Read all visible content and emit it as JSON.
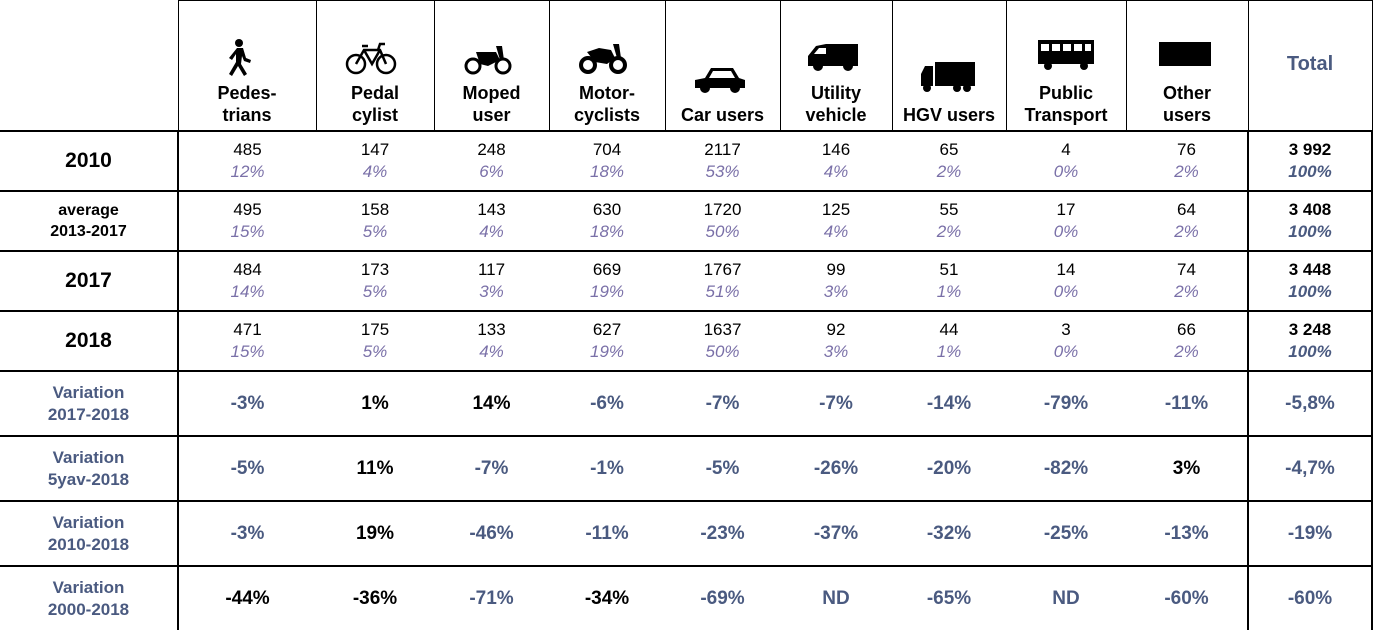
{
  "header": {
    "columns": [
      "Pedes-\ntrians",
      "Pedal\ncylist",
      "Moped\nuser",
      "Motor-\ncyclists",
      "Car users",
      "Utility\nvehicle",
      "HGV users",
      "Public\nTransport",
      "Other\nusers"
    ],
    "total": "Total"
  },
  "rows": [
    {
      "label": "2010",
      "counts": [
        485,
        147,
        248,
        704,
        2117,
        146,
        65,
        4,
        76
      ],
      "shares": [
        "12%",
        "4%",
        "6%",
        "18%",
        "53%",
        "4%",
        "2%",
        "0%",
        "2%"
      ],
      "total": "3 992",
      "total_share": "100%"
    },
    {
      "label": "average\n2013-2017",
      "counts": [
        495,
        158,
        143,
        630,
        1720,
        125,
        55,
        17,
        64
      ],
      "shares": [
        "15%",
        "5%",
        "4%",
        "18%",
        "50%",
        "4%",
        "2%",
        "0%",
        "2%"
      ],
      "total": "3 408",
      "total_share": "100%"
    },
    {
      "label": "2017",
      "counts": [
        484,
        173,
        117,
        669,
        1767,
        99,
        51,
        14,
        74
      ],
      "shares": [
        "14%",
        "5%",
        "3%",
        "19%",
        "51%",
        "3%",
        "1%",
        "0%",
        "2%"
      ],
      "total": "3 448",
      "total_share": "100%"
    },
    {
      "label": "2018",
      "counts": [
        471,
        175,
        133,
        627,
        1637,
        92,
        44,
        3,
        66
      ],
      "shares": [
        "15%",
        "5%",
        "4%",
        "19%",
        "50%",
        "3%",
        "1%",
        "0%",
        "2%"
      ],
      "total": "3 248",
      "total_share": "100%"
    }
  ],
  "variations": [
    {
      "label": "Variation\n2017-2018",
      "values": [
        "-3%",
        "1%",
        "14%",
        "-6%",
        "-7%",
        "-7%",
        "-14%",
        "-79%",
        "-11%"
      ],
      "total": "-5,8%",
      "black": [
        1,
        2
      ]
    },
    {
      "label": "Variation\n5yav-2018",
      "values": [
        "-5%",
        "11%",
        "-7%",
        "-1%",
        "-5%",
        "-26%",
        "-20%",
        "-82%",
        "3%"
      ],
      "total": "-4,7%",
      "black": [
        1,
        8
      ]
    },
    {
      "label": "Variation\n2010-2018",
      "values": [
        "-3%",
        "19%",
        "-46%",
        "-11%",
        "-23%",
        "-37%",
        "-32%",
        "-25%",
        "-13%"
      ],
      "total": "-19%",
      "black": [
        1
      ]
    },
    {
      "label": "Variation\n2000-2018",
      "values": [
        "-44%",
        "-36%",
        "-71%",
        "-34%",
        "-69%",
        "ND",
        "-65%",
        "ND",
        "-60%"
      ],
      "total": "-60%",
      "black": [
        0,
        1,
        3
      ]
    }
  ]
}
